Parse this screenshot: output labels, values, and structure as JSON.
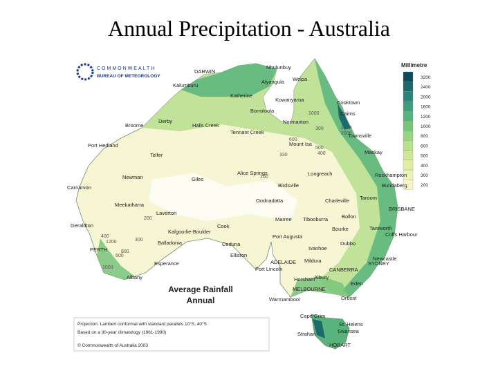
{
  "header": {
    "title": "Annual Precipitation - Australia"
  },
  "map": {
    "agency": [
      "COMMONWEALTH",
      "BUREAU OF METEOROLOGY"
    ],
    "title": [
      "Average  Rainfall",
      "Annual"
    ],
    "legend": {
      "title": "Millimetre",
      "items": [
        {
          "label": "3200",
          "color": "#0b4d5a"
        },
        {
          "label": "2400",
          "color": "#1b6a6c"
        },
        {
          "label": "2000",
          "color": "#2a8578"
        },
        {
          "label": "1600",
          "color": "#3c9d7e"
        },
        {
          "label": "1200",
          "color": "#58b47c"
        },
        {
          "label": "1000",
          "color": "#78c47a"
        },
        {
          "label": "800",
          "color": "#98d484"
        },
        {
          "label": "600",
          "color": "#b6df8e"
        },
        {
          "label": "500",
          "color": "#cde79a"
        },
        {
          "label": "400",
          "color": "#e0eea6"
        },
        {
          "label": "300",
          "color": "#edf3b6"
        },
        {
          "label": "200",
          "color": "#f6f6cc"
        }
      ]
    },
    "places": [
      "DARWIN",
      "Nhulunbuy",
      "Weipa",
      "Alyangula",
      "Kalumburu",
      "Katherine",
      "Kowanyama",
      "Cooktown",
      "Borroloola",
      "Cairns",
      "Derby",
      "Halls Creek",
      "Normanton",
      "Broome",
      "Tennant Creek",
      "Townsville",
      "Mount Isa",
      "Port Hedland",
      "Telfer",
      "Mackay",
      "Alice Springs",
      "Longreach",
      "Rockhampton",
      "Newman",
      "Giles",
      "Birdsville",
      "Carnarvon",
      "Bundaberg",
      "Taroom",
      "Oodnadatta",
      "Charleville",
      "Meekatharra",
      "BRISBANE",
      "Laverton",
      "Geraldton",
      "Marree",
      "Tibooburra",
      "Bollon",
      "Cook",
      "Bourke",
      "Kalgoorlie-Boulder",
      "Coffs Harbour",
      "Ceduna",
      "Port Augusta",
      "Tamworth",
      "Dubbo",
      "Ivanhoe",
      "PERTH",
      "Balladonia",
      "Newcastle",
      "Elliston",
      "Mildura",
      "ADELAIDE",
      "SYDNEY",
      "Esperance",
      "Port Lincoln",
      "CANBERRA",
      "Albany",
      "Horsham",
      "Albury",
      "Eden",
      "MELBOURNE",
      "Orbost",
      "Warrnambool",
      "Cape Grim",
      "St. Helens",
      "Swansea",
      "Strahan",
      "HOBART"
    ],
    "isohyets": [
      "1000",
      "300",
      "600",
      "500",
      "400",
      "330",
      "200",
      "2400",
      "2000",
      "1200",
      "800",
      "1000",
      "600",
      "200",
      "300",
      "400"
    ],
    "footnote": [
      "Projection: Lambert conformal with standard parallels 10°S, 40°S",
      "Based on a 30-year climatology (1961-1990)",
      "© Commonwealth of Australia 2003"
    ]
  }
}
